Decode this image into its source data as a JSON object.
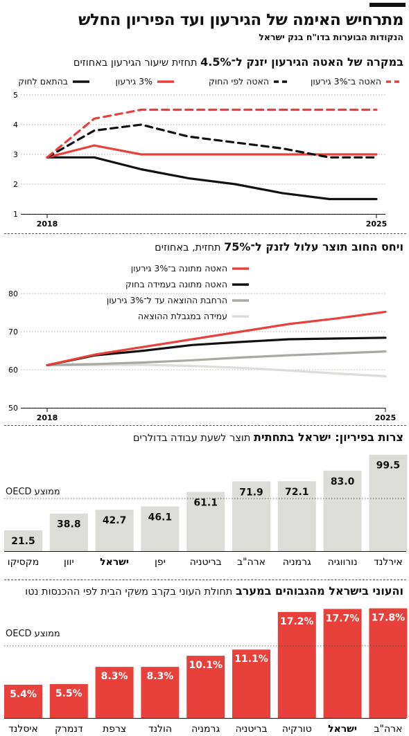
{
  "headline": "מתרחיש האימה של הגירעון ועד הפיריון החלש",
  "source": "הנקודות הבוערות בדו\"ח בנק ישראל",
  "chart_data": [
    {
      "type": "line",
      "title_bold": "במקרה של האטה הגירעון יזנק ל־4.5%",
      "title_rest": "תחזית שיעור הגירעון באחוזים",
      "x": [
        2018,
        2019,
        2020,
        2021,
        2022,
        2023,
        2024,
        2025
      ],
      "xticks": [
        "2018",
        "2025"
      ],
      "ylim": [
        1,
        5
      ],
      "yticks": [
        1,
        2,
        3,
        4,
        5
      ],
      "series": [
        {
          "name": "האטה ב־3% גירעון",
          "color": "#e8413b",
          "dash": "10,7",
          "values": [
            2.9,
            4.2,
            4.5,
            4.5,
            4.5,
            4.5,
            4.5,
            4.5
          ]
        },
        {
          "name": "האטה לפי החוק",
          "color": "#111111",
          "dash": "10,7",
          "values": [
            2.9,
            3.8,
            4.0,
            3.6,
            3.4,
            3.2,
            2.9,
            2.9
          ]
        },
        {
          "name": "3% גירעון",
          "color": "#e8413b",
          "dash": "",
          "values": [
            2.9,
            3.3,
            3.0,
            3.0,
            3.0,
            3.0,
            3.0,
            3.0
          ]
        },
        {
          "name": "בהתאם לחוק",
          "color": "#111111",
          "dash": "",
          "values": [
            2.9,
            2.9,
            2.5,
            2.2,
            2.0,
            1.7,
            1.5,
            1.5
          ]
        }
      ]
    },
    {
      "type": "line",
      "title_bold": "ויחס החוב תוצר עלול לזנק ל־75%",
      "title_rest": "תחזית, באחוזים",
      "x": [
        2018,
        2019,
        2020,
        2021,
        2022,
        2023,
        2024,
        2025
      ],
      "xticks": [
        "2018",
        "2025"
      ],
      "ylim": [
        50,
        80
      ],
      "yticks": [
        50,
        60,
        70,
        80
      ],
      "series": [
        {
          "name": "האטה מתונה ב־3% גירעון",
          "color": "#e8413b",
          "values": [
            61.2,
            64.0,
            66.0,
            68.0,
            70.0,
            72.0,
            73.5,
            75.2
          ]
        },
        {
          "name": "האטה מתונה בעמידה בחוק",
          "color": "#111111",
          "values": [
            61.2,
            63.8,
            65.0,
            66.5,
            67.3,
            68.0,
            68.2,
            68.4
          ]
        },
        {
          "name": "הרחבת ההוצאה עד ל־3% גירעון",
          "color": "#a9a9a3",
          "values": [
            61.2,
            61.5,
            61.9,
            62.5,
            63.2,
            63.8,
            64.3,
            64.8
          ]
        },
        {
          "name": "עמידה במגבלת ההוצאה",
          "color": "#dcdcd8",
          "values": [
            61.2,
            61.2,
            61.3,
            61.0,
            60.5,
            59.8,
            59.0,
            58.3
          ]
        }
      ]
    },
    {
      "type": "bar",
      "title_bold": "צרות בפיריון: ישראל בתחתית",
      "title_rest": "תוצר לשעת עבודה בדולרים",
      "reference_label": "ממוצע OECD",
      "reference_value": 54.3,
      "ylim": [
        0,
        100
      ],
      "bar_color": "#dcdcd8",
      "categories": [
        "מקסיקו",
        "יוון",
        "ישראל",
        "יפן",
        "בריטניה",
        "ארה\"ב",
        "גרמניה",
        "נורווגיה",
        "אירלנד"
      ],
      "values": [
        21.5,
        38.8,
        42.7,
        46.1,
        61.1,
        71.9,
        72.1,
        83.0,
        99.5
      ],
      "value_labels": [
        "21.5",
        "38.8",
        "42.7",
        "46.1",
        "61.1",
        "71.9",
        "72.1",
        "83.0",
        "99.5"
      ],
      "highlight": "ישראל"
    },
    {
      "type": "bar",
      "title_bold": "והעוני בישראל מהגבוהים במערב",
      "title_rest": "תחולת העוני בקרב משקי הבית לפי ההכנסות נטו",
      "reference_label": "ממוצע OECD",
      "reference_value": 11.7,
      "ylim": [
        0,
        18.2
      ],
      "bar_color": "#e8413b",
      "categories": [
        "איסלנד",
        "דנמרק",
        "צרפת",
        "הולנד",
        "גרמניה",
        "בריטניה",
        "טורקיה",
        "ישראל",
        "ארה\"ב"
      ],
      "values": [
        5.4,
        5.5,
        8.3,
        8.3,
        10.1,
        11.1,
        17.2,
        17.7,
        17.8
      ],
      "value_labels": [
        "5.4%",
        "5.5%",
        "8.3%",
        "8.3%",
        "10.1%",
        "11.1%",
        "17.2%",
        "17.7%",
        "17.8%"
      ],
      "highlight": "ישראל"
    }
  ]
}
